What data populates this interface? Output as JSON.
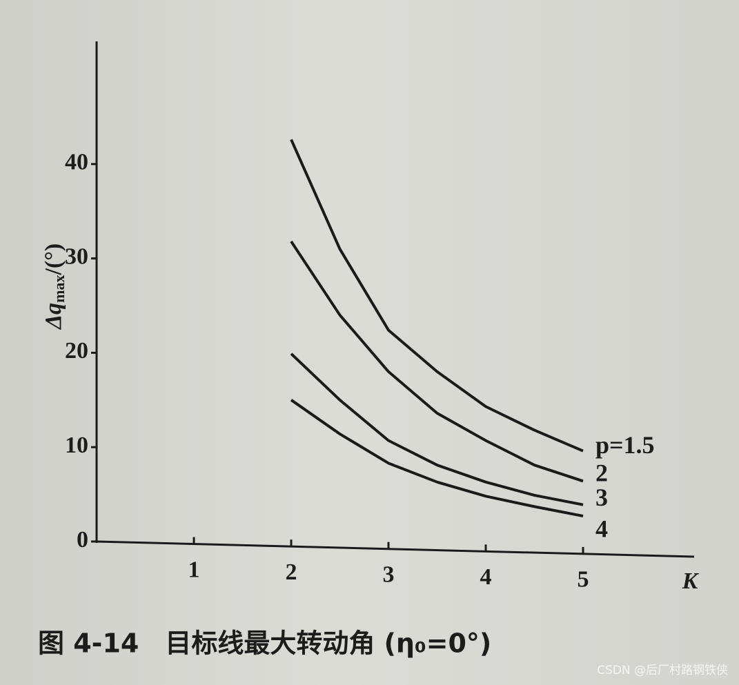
{
  "chart_data": {
    "type": "line",
    "ylabel": {
      "symbol": "Δq",
      "subscript": "max",
      "unit": "/(°)"
    },
    "xlabel": "K",
    "caption": "图 4-14　目标线最大转动角 (η₀=0°)",
    "watermark": "CSDN @后厂村路钢铁侠",
    "x": [
      2,
      2.5,
      3,
      3.5,
      4,
      4.5,
      5
    ],
    "series": [
      {
        "name": "p=1.5",
        "color": "#1a1a1a",
        "values": [
          42.6,
          31,
          22.4,
          18,
          14.3,
          11.8,
          9.6
        ]
      },
      {
        "name": "2",
        "color": "#1a1a1a",
        "values": [
          31.8,
          24,
          18,
          13.6,
          10.7,
          8.1,
          6.4
        ]
      },
      {
        "name": "3",
        "color": "#1a1a1a",
        "values": [
          19.9,
          15,
          10.7,
          8.1,
          6.3,
          4.9,
          3.9
        ]
      },
      {
        "name": "4",
        "color": "#1a1a1a",
        "values": [
          15,
          11.4,
          8.3,
          6.3,
          4.8,
          3.7,
          2.7
        ]
      }
    ],
    "xlim": [
      0,
      6
    ],
    "xticks": [
      1,
      2,
      3,
      4,
      5
    ],
    "ylim": [
      0,
      53
    ],
    "yticks": [
      0,
      10,
      20,
      30,
      40
    ]
  }
}
